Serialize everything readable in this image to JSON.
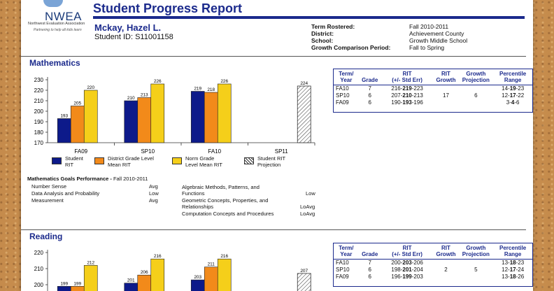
{
  "header": {
    "logo": {
      "name": "NWEA",
      "org": "Northwest Evaluation Association",
      "tagline": "Partnering to help all kids learn"
    },
    "title": "Student Progress Report"
  },
  "student": {
    "name": "Mckay, Hazel L.",
    "id_label": "Student ID: S11001158"
  },
  "term_info": [
    {
      "label": "Term Rostered:",
      "value": "Fall 2010-2011"
    },
    {
      "label": "District:",
      "value": "Achievement County"
    },
    {
      "label": "School:",
      "value": "Growth Middle School"
    },
    {
      "label": "Growth Comparison Period:",
      "value": "Fall to Spring"
    }
  ],
  "colors": {
    "student": "#0d1a8a",
    "district": "#f28a1a",
    "norm": "#f5cf1a",
    "accent": "#1b2a8c"
  },
  "legend": {
    "student": "Student RIT",
    "district": "District Grade Level Mean RIT",
    "norm": "Norm Grade Level Mean RIT",
    "projection": "Student RIT Projection"
  },
  "table_headers": [
    "Term/ Year",
    "Grade",
    "RIT (+/- Std Err)",
    "RIT Growth",
    "Growth Projection",
    "Percentile Range"
  ],
  "math": {
    "title": "Mathematics",
    "chart_data": {
      "type": "bar",
      "categories": [
        "FA09",
        "SP10",
        "FA10",
        "SP11"
      ],
      "series": [
        {
          "name": "Student RIT",
          "values": [
            193,
            210,
            219,
            null
          ]
        },
        {
          "name": "District Grade Level Mean RIT",
          "values": [
            205,
            213,
            218,
            null
          ]
        },
        {
          "name": "Norm Grade Level Mean RIT",
          "values": [
            220,
            226,
            226,
            null
          ]
        },
        {
          "name": "Student RIT Projection",
          "values": [
            null,
            null,
            null,
            224
          ]
        }
      ],
      "ylim": [
        170,
        230
      ],
      "yticks": [
        170,
        180,
        190,
        200,
        210,
        220,
        230
      ]
    },
    "goals_title": "Mathematics Goals Performance - ",
    "goals_term": "Fall 2010-2011",
    "goals_left": [
      {
        "name": "Number Sense",
        "value": "Avg"
      },
      {
        "name": "Data Analysis and Probability",
        "value": "Low"
      },
      {
        "name": "Measurement",
        "value": "Avg"
      }
    ],
    "goals_right": [
      {
        "name": "Algebraic Methods, Patterns, and Functions",
        "value": "Low"
      },
      {
        "name": "Geometric Concepts, Properties, and Relationships",
        "value": "LoAvg"
      },
      {
        "name": "Computation Concepts and Procedures",
        "value": "LoAvg"
      }
    ],
    "table_rows": [
      {
        "term": "FA10",
        "grade": "7",
        "rit_lo": "216-",
        "rit": "219",
        "rit_hi": "-223",
        "growth": "",
        "projection": "",
        "pct_lo": "14-",
        "pct": "19",
        "pct_hi": "-23"
      },
      {
        "term": "SP10",
        "grade": "6",
        "rit_lo": "207-",
        "rit": "210",
        "rit_hi": "-213",
        "growth": "17",
        "projection": "6",
        "pct_lo": "12-",
        "pct": "17",
        "pct_hi": "-22"
      },
      {
        "term": "FA09",
        "grade": "6",
        "rit_lo": "190-",
        "rit": "193",
        "rit_hi": "-196",
        "growth": "",
        "projection": "",
        "pct_lo": "3-",
        "pct": "4",
        "pct_hi": "-6"
      }
    ]
  },
  "reading": {
    "title": "Reading",
    "chart_data": {
      "type": "bar",
      "categories": [
        "FA09",
        "SP10",
        "FA10",
        "SP11"
      ],
      "series": [
        {
          "name": "Student RIT",
          "values": [
            199,
            201,
            203,
            null
          ]
        },
        {
          "name": "District Grade Level Mean RIT",
          "values": [
            199,
            206,
            211,
            null
          ]
        },
        {
          "name": "Norm Grade Level Mean RIT",
          "values": [
            212,
            216,
            216,
            null
          ]
        },
        {
          "name": "Student RIT Projection",
          "values": [
            null,
            null,
            null,
            207
          ]
        }
      ],
      "ylim": [
        190,
        220
      ],
      "yticks": [
        200,
        210,
        220
      ]
    },
    "table_rows": [
      {
        "term": "FA10",
        "grade": "7",
        "rit_lo": "200-",
        "rit": "203",
        "rit_hi": "-206",
        "growth": "",
        "projection": "",
        "pct_lo": "13-",
        "pct": "18",
        "pct_hi": "-23"
      },
      {
        "term": "SP10",
        "grade": "6",
        "rit_lo": "198-",
        "rit": "201",
        "rit_hi": "-204",
        "growth": "2",
        "projection": "5",
        "pct_lo": "12-",
        "pct": "17",
        "pct_hi": "-24"
      },
      {
        "term": "FA09",
        "grade": "6",
        "rit_lo": "196-",
        "rit": "199",
        "rit_hi": "-203",
        "growth": "",
        "projection": "",
        "pct_lo": "13-",
        "pct": "18",
        "pct_hi": "-26"
      }
    ]
  }
}
